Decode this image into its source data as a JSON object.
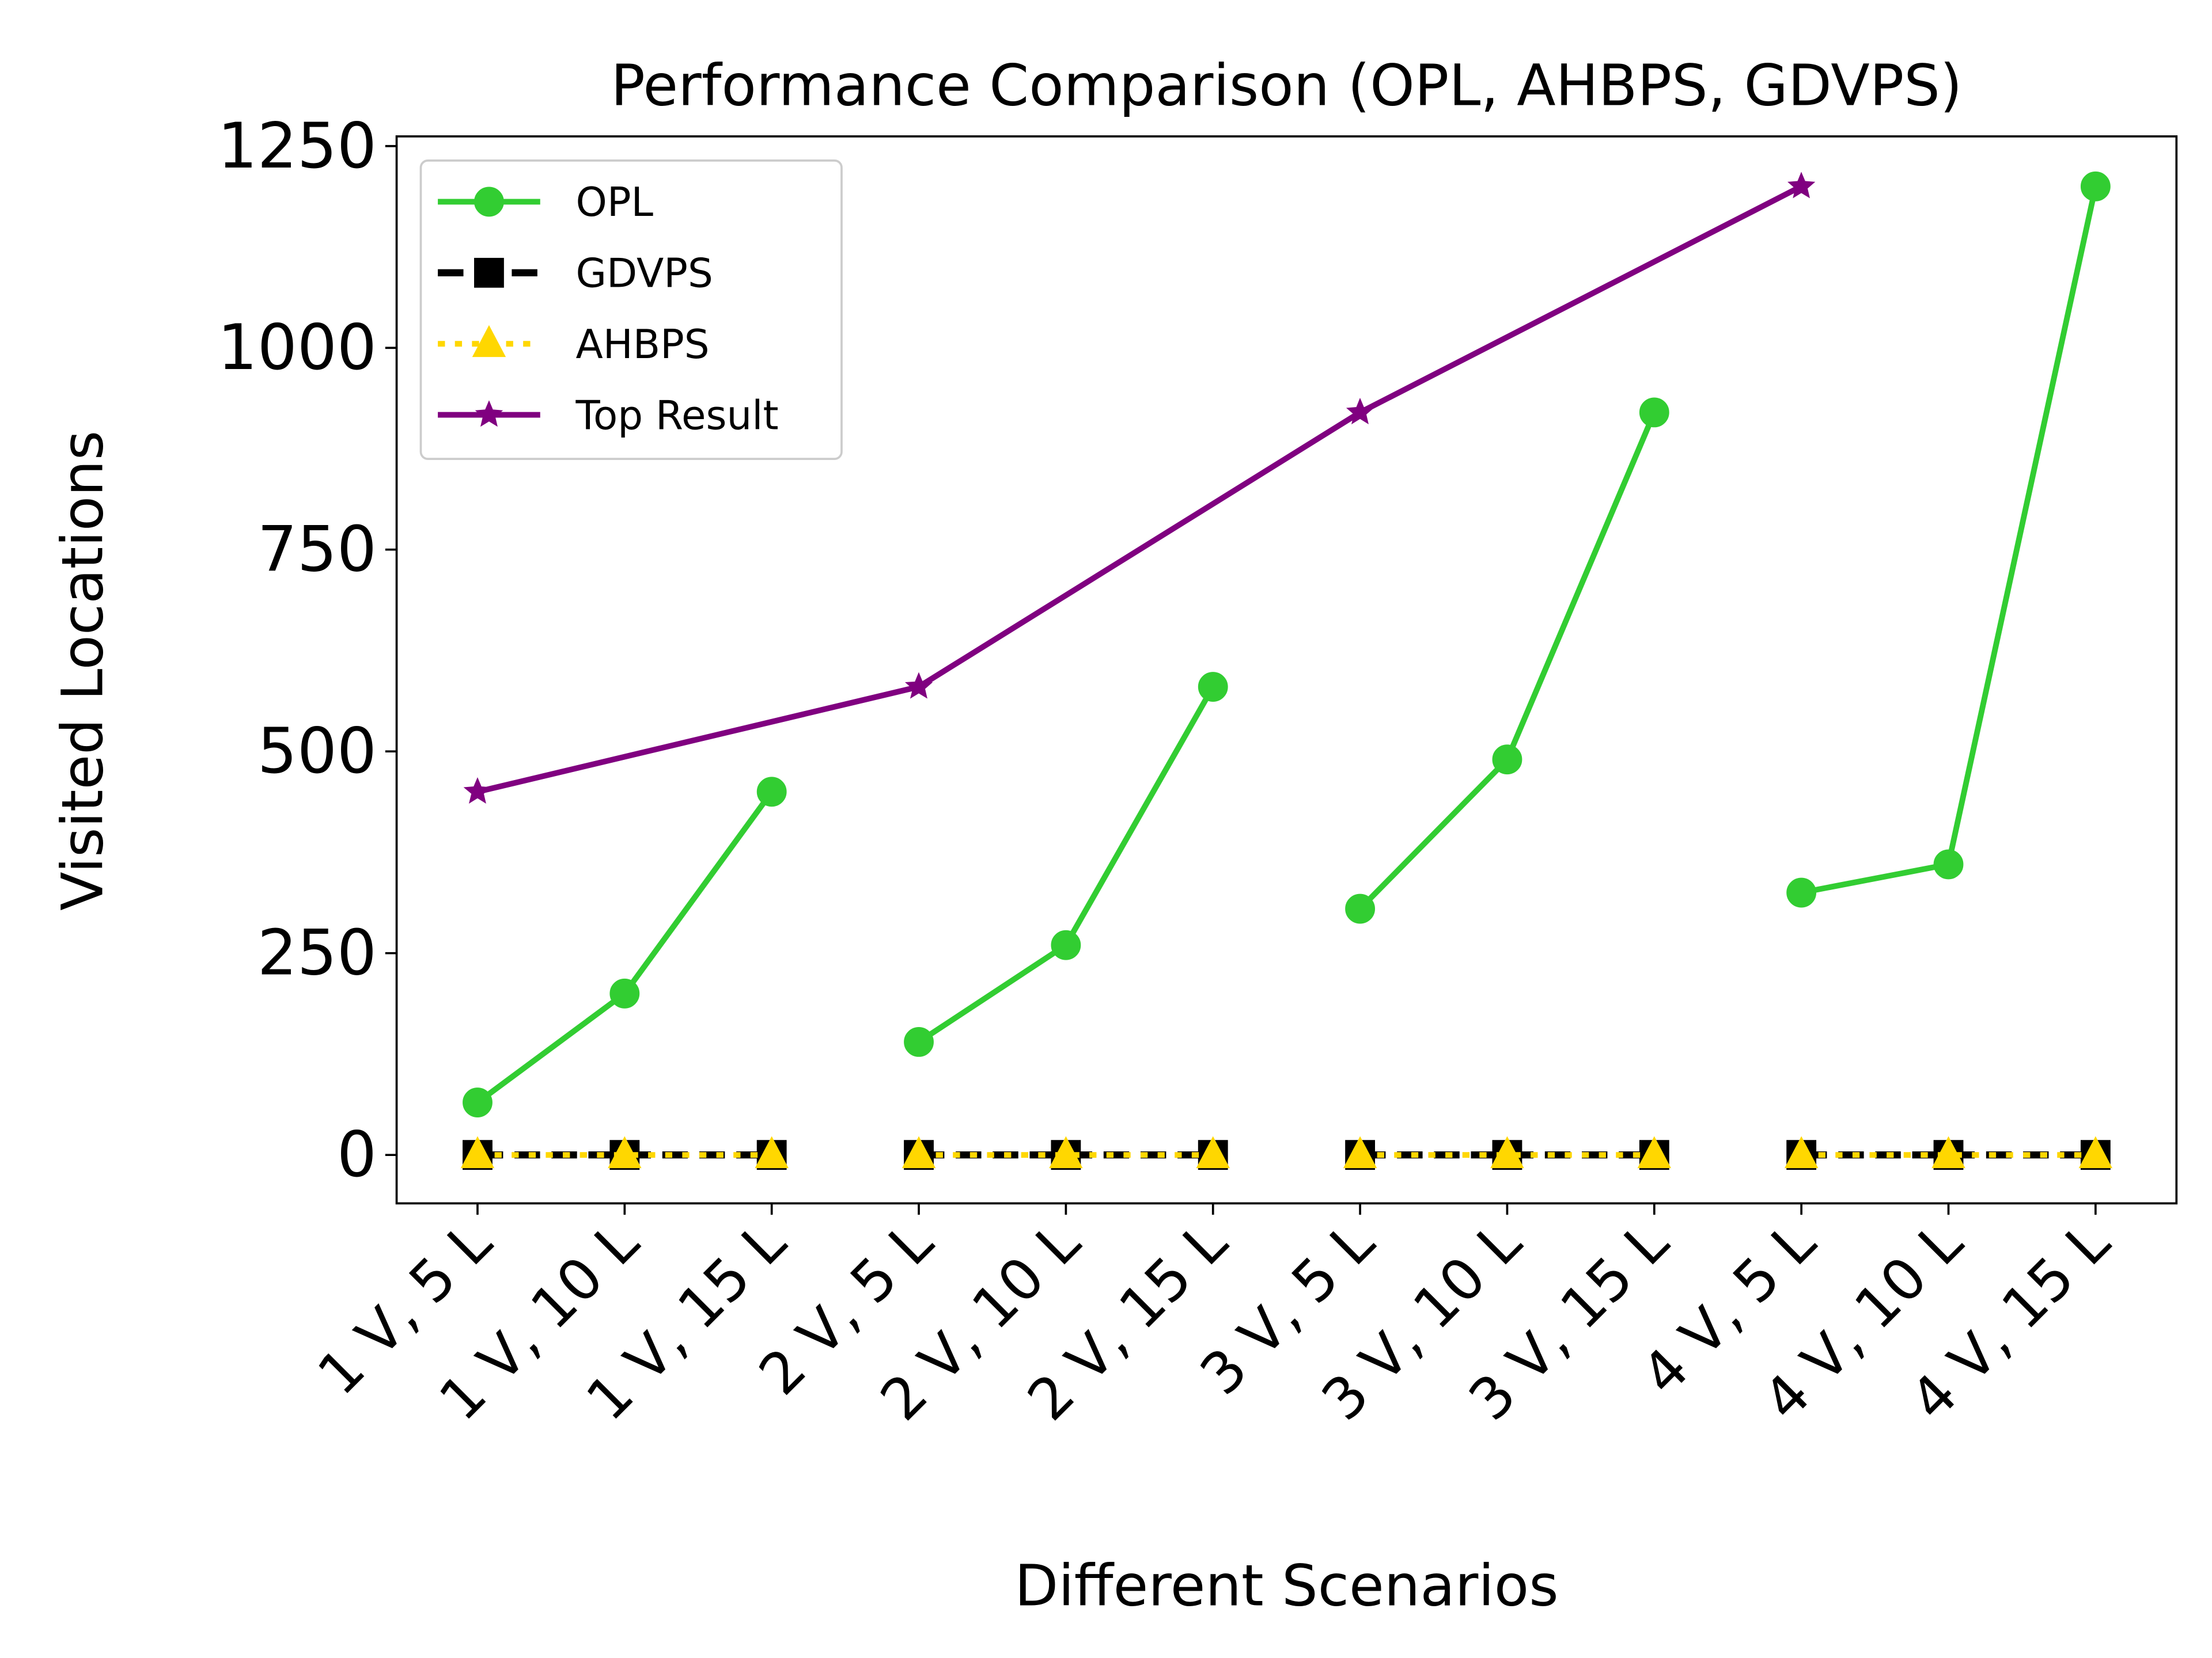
{
  "chart_data": {
    "type": "line",
    "title": "Performance Comparison (OPL, AHBPS, GDVPS)",
    "xlabel": "Different Scenarios",
    "ylabel": "Visited Locations",
    "xlim": [
      -0.55,
      11.55
    ],
    "xticks": [
      {
        "value": 0,
        "label": "1 V, 5 L"
      },
      {
        "value": 1,
        "label": "1 V, 10 L"
      },
      {
        "value": 2,
        "label": "1 V, 15 L"
      },
      {
        "value": 3,
        "label": "2 V, 5 L"
      },
      {
        "value": 4,
        "label": "2 V, 10 L"
      },
      {
        "value": 5,
        "label": "2 V, 15 L"
      },
      {
        "value": 6,
        "label": "3 V, 5 L"
      },
      {
        "value": 7,
        "label": "3 V, 10 L"
      },
      {
        "value": 8,
        "label": "3 V, 15 L"
      },
      {
        "value": 9,
        "label": "4 V, 5 L"
      },
      {
        "value": 10,
        "label": "4 V, 10 L"
      },
      {
        "value": 11,
        "label": "4 V, 15 L"
      }
    ],
    "ylim": [
      -60,
      1262
    ],
    "yticks": [
      0,
      250,
      500,
      750,
      1000,
      1250
    ],
    "legend": "upper left",
    "series": [
      {
        "name": "OPL",
        "color": "#32cd32",
        "marker": "circle",
        "linestyle": "solid",
        "x": [
          0,
          1,
          2,
          null,
          3,
          4,
          5,
          null,
          6,
          7,
          8,
          null,
          9,
          10,
          11
        ],
        "values": [
          65,
          200,
          450,
          null,
          140,
          260,
          580,
          null,
          305,
          490,
          920,
          null,
          325,
          360,
          1200
        ]
      },
      {
        "name": "GDVPS",
        "color": "#000000",
        "marker": "square",
        "linestyle": "dashed",
        "x": [
          0,
          1,
          2,
          null,
          3,
          4,
          5,
          null,
          6,
          7,
          8,
          null,
          9,
          10,
          11
        ],
        "values": [
          0,
          0,
          0,
          null,
          0,
          0,
          0,
          null,
          0,
          0,
          0,
          null,
          0,
          0,
          0
        ]
      },
      {
        "name": "AHBPS",
        "color": "#ffd700",
        "marker": "triangle",
        "linestyle": "dotted",
        "x": [
          0,
          1,
          2,
          null,
          3,
          4,
          5,
          null,
          6,
          7,
          8,
          null,
          9,
          10,
          11
        ],
        "values": [
          0,
          0,
          0,
          null,
          0,
          0,
          0,
          null,
          0,
          0,
          0,
          null,
          0,
          0,
          0
        ]
      },
      {
        "name": "Top Result",
        "color": "#800080",
        "marker": "star",
        "linestyle": "solid",
        "x": [
          0,
          3,
          6,
          9
        ],
        "values": [
          450,
          580,
          920,
          1200
        ]
      }
    ]
  }
}
